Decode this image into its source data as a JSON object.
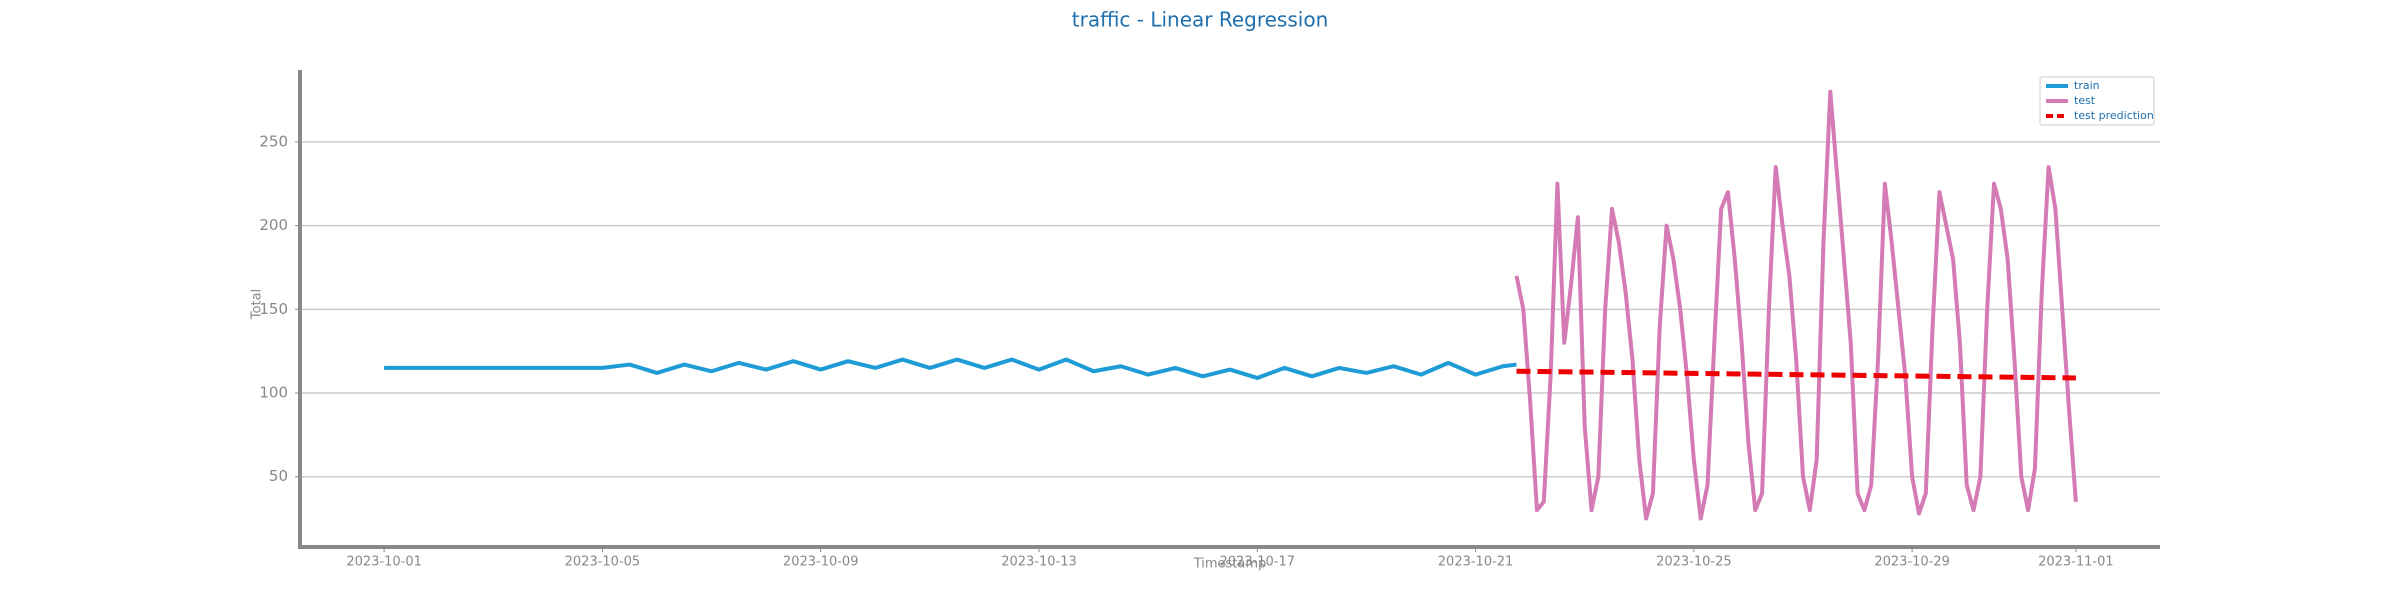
{
  "chart_data": {
    "type": "line",
    "title": "traffic - Linear Regression",
    "x_label": "Timestamp",
    "y_label": "Total",
    "xlim": [
      "2023-09-29 11:00",
      "2023-11-02 13:00"
    ],
    "xticks": [
      "2023-10-01",
      "2023-10-05",
      "2023-10-09",
      "2023-10-13",
      "2023-10-17",
      "2023-10-21",
      "2023-10-25",
      "2023-10-29",
      "2023-11-01"
    ],
    "ylim": [
      8,
      293
    ],
    "yticks": [
      50,
      100,
      150,
      200,
      250
    ],
    "grid": true,
    "legend": "upper right",
    "series": [
      {
        "name": "train",
        "color": "#1f9bd6",
        "linestyle": "solid",
        "x": [
          "2023-10-01 00:00",
          "2023-10-05 00:00",
          "2023-10-05 12:00",
          "2023-10-06 00:00",
          "2023-10-06 12:00",
          "2023-10-07 00:00",
          "2023-10-07 12:00",
          "2023-10-08 00:00",
          "2023-10-08 12:00",
          "2023-10-09 00:00",
          "2023-10-09 12:00",
          "2023-10-10 00:00",
          "2023-10-10 12:00",
          "2023-10-11 00:00",
          "2023-10-11 12:00",
          "2023-10-12 00:00",
          "2023-10-12 12:00",
          "2023-10-13 00:00",
          "2023-10-13 12:00",
          "2023-10-14 00:00",
          "2023-10-14 12:00",
          "2023-10-15 00:00",
          "2023-10-15 12:00",
          "2023-10-16 00:00",
          "2023-10-16 12:00",
          "2023-10-17 00:00",
          "2023-10-17 12:00",
          "2023-10-18 00:00",
          "2023-10-18 12:00",
          "2023-10-19 00:00",
          "2023-10-19 12:00",
          "2023-10-20 00:00",
          "2023-10-20 12:00",
          "2023-10-21 00:00",
          "2023-10-21 12:00",
          "2023-10-21 18:00"
        ],
        "values": [
          115,
          115,
          117,
          112,
          117,
          113,
          118,
          114,
          119,
          114,
          119,
          115,
          120,
          115,
          120,
          115,
          120,
          114,
          120,
          113,
          116,
          111,
          115,
          110,
          114,
          109,
          115,
          110,
          115,
          112,
          116,
          111,
          118,
          111,
          116,
          117
        ]
      },
      {
        "name": "test",
        "color": "#d47ab5",
        "linestyle": "solid",
        "x": [
          "2023-10-21 18:00",
          "2023-10-21 21:00",
          "2023-10-22 00:00",
          "2023-10-22 03:00",
          "2023-10-22 06:00",
          "2023-10-22 09:00",
          "2023-10-22 12:00",
          "2023-10-22 15:00",
          "2023-10-22 18:00",
          "2023-10-22 21:00",
          "2023-10-23 00:00",
          "2023-10-23 03:00",
          "2023-10-23 06:00",
          "2023-10-23 09:00",
          "2023-10-23 12:00",
          "2023-10-23 15:00",
          "2023-10-23 18:00",
          "2023-10-23 21:00",
          "2023-10-24 00:00",
          "2023-10-24 03:00",
          "2023-10-24 06:00",
          "2023-10-24 09:00",
          "2023-10-24 12:00",
          "2023-10-24 15:00",
          "2023-10-24 18:00",
          "2023-10-24 21:00",
          "2023-10-25 00:00",
          "2023-10-25 03:00",
          "2023-10-25 06:00",
          "2023-10-25 09:00",
          "2023-10-25 12:00",
          "2023-10-25 15:00",
          "2023-10-25 18:00",
          "2023-10-25 21:00",
          "2023-10-26 00:00",
          "2023-10-26 03:00",
          "2023-10-26 06:00",
          "2023-10-26 09:00",
          "2023-10-26 12:00",
          "2023-10-26 15:00",
          "2023-10-26 18:00",
          "2023-10-26 21:00",
          "2023-10-27 00:00",
          "2023-10-27 03:00",
          "2023-10-27 06:00",
          "2023-10-27 09:00",
          "2023-10-27 12:00",
          "2023-10-27 15:00",
          "2023-10-27 18:00",
          "2023-10-27 21:00",
          "2023-10-28 00:00",
          "2023-10-28 03:00",
          "2023-10-28 06:00",
          "2023-10-28 09:00",
          "2023-10-28 12:00",
          "2023-10-28 15:00",
          "2023-10-28 18:00",
          "2023-10-28 21:00",
          "2023-10-29 00:00",
          "2023-10-29 03:00",
          "2023-10-29 06:00",
          "2023-10-29 09:00",
          "2023-10-29 12:00",
          "2023-10-29 15:00",
          "2023-10-29 18:00",
          "2023-10-29 21:00",
          "2023-10-30 00:00",
          "2023-10-30 03:00",
          "2023-10-30 06:00",
          "2023-10-30 09:00",
          "2023-10-30 12:00",
          "2023-10-30 15:00",
          "2023-10-30 18:00",
          "2023-10-30 21:00",
          "2023-10-31 00:00",
          "2023-10-31 03:00",
          "2023-10-31 06:00",
          "2023-10-31 09:00",
          "2023-10-31 12:00",
          "2023-10-31 15:00",
          "2023-10-31 18:00",
          "2023-10-31 21:00",
          "2023-11-01 00:00"
        ],
        "values": [
          170,
          150,
          95,
          30,
          35,
          110,
          225,
          130,
          165,
          205,
          80,
          30,
          50,
          150,
          210,
          190,
          160,
          120,
          60,
          25,
          40,
          140,
          200,
          180,
          150,
          110,
          60,
          25,
          45,
          130,
          210,
          220,
          180,
          130,
          70,
          30,
          40,
          150,
          235,
          200,
          170,
          120,
          50,
          30,
          60,
          190,
          280,
          230,
          180,
          130,
          40,
          30,
          45,
          120,
          225,
          190,
          150,
          110,
          50,
          28,
          40,
          140,
          220,
          200,
          180,
          130,
          45,
          30,
          50,
          150,
          225,
          210,
          180,
          120,
          50,
          30,
          55,
          160,
          235,
          210,
          150,
          90,
          35
        ]
      },
      {
        "name": "test prediction",
        "color": "#ee0000",
        "linestyle": "dashed",
        "x": [
          "2023-10-21 18:00",
          "2023-11-01 00:00"
        ],
        "values": [
          113,
          109
        ]
      }
    ]
  }
}
